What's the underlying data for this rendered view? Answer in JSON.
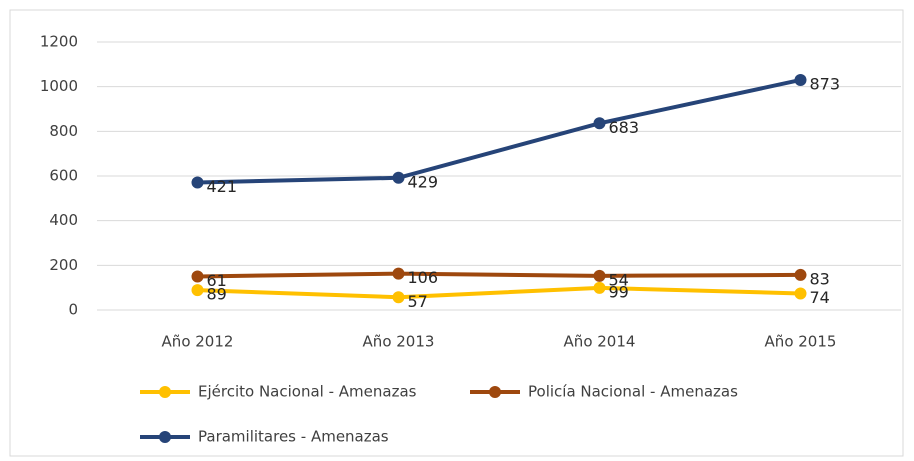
{
  "chart_data": {
    "type": "line",
    "stacked": true,
    "categories": [
      "Año 2012",
      "Año 2013",
      "Año 2014",
      "Año 2015"
    ],
    "series": [
      {
        "name": "Ejército Nacional - Amenazas",
        "color": "#ffc000",
        "values": [
          89,
          57,
          99,
          74
        ]
      },
      {
        "name": "Policía Nacional - Amenazas",
        "color": "#9e480e",
        "values": [
          61,
          106,
          54,
          83
        ]
      },
      {
        "name": "Paramilitares - Amenazas",
        "color": "#264478",
        "values": [
          421,
          429,
          683,
          873
        ]
      }
    ],
    "ylim": [
      0,
      1200
    ],
    "yticks": [
      0,
      200,
      400,
      600,
      800,
      1000,
      1200
    ],
    "grid": true
  }
}
